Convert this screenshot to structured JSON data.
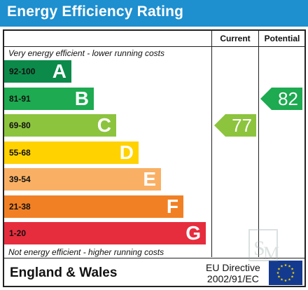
{
  "header": {
    "title": "Energy Efficiency Rating"
  },
  "columns": {
    "current": "Current",
    "potential": "Potential"
  },
  "notes": {
    "top": "Very energy efficient - lower running costs",
    "bottom": "Not energy efficient - higher running costs"
  },
  "footer": {
    "region": "England & Wales",
    "directive_line1": "EU Directive",
    "directive_line2": "2002/91/EC"
  },
  "colors": {
    "title_bar": "#1e8fcf",
    "flag": "#143a8f",
    "star": "#f5d200"
  },
  "icons": {
    "flag": "eu-flag-icon",
    "watermark": "sm-watermark-logo"
  },
  "chart_data": {
    "type": "bar",
    "title": "Energy Efficiency Rating",
    "categories": [
      "92-100",
      "81-91",
      "69-80",
      "55-68",
      "39-54",
      "21-38",
      "1-20"
    ],
    "letters": [
      "A",
      "B",
      "C",
      "D",
      "E",
      "F",
      "G"
    ],
    "band_colors": [
      "#0c8a4a",
      "#1daa50",
      "#8cc43e",
      "#ffd200",
      "#f9b064",
      "#f18024",
      "#e62d3d"
    ],
    "current": {
      "value": 77,
      "band": "C",
      "color": "#8cc43e"
    },
    "potential": {
      "value": 82,
      "band": "B",
      "color": "#1daa50"
    }
  }
}
